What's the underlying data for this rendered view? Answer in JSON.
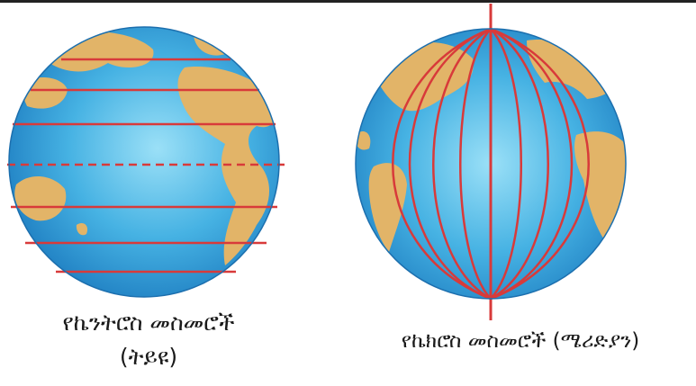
{
  "figures": {
    "latitudes": {
      "caption_line1": "የኬንትሮስ መስመሮች",
      "caption_line2": "(ትይዩ)"
    },
    "longitudes": {
      "caption": "የኬክሮስ መስመሮች (ሜሪድያን)"
    }
  },
  "colors": {
    "ocean": "#3aa6dd",
    "ocean_light": "#7fd0f2",
    "land": "#e2b468",
    "lines": "#d83a3a"
  },
  "icons": [
    "globe-icon"
  ]
}
